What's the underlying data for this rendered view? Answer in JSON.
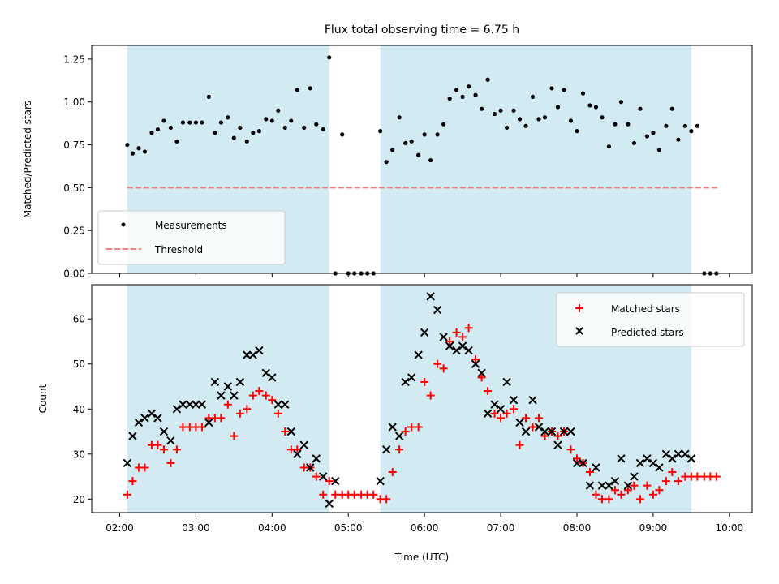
{
  "colors": {
    "observing_band": "#add8e6",
    "measurement": "#000000",
    "threshold": "#f08080",
    "matched": "#ff0000",
    "predicted": "#000000"
  },
  "chart_data": [
    {
      "type": "scatter",
      "title": "Flux total observing time = 6.75 h",
      "xlabel": "",
      "ylabel": "Matched/Predicted stars",
      "xlim": [
        1.633,
        10.3
      ],
      "ylim": [
        0,
        1.33
      ],
      "yticks": [
        0,
        0.25,
        0.5,
        0.75,
        1.0,
        1.25
      ],
      "ytick_labels": [
        "0.00",
        "0.25",
        "0.50",
        "0.75",
        "1.00",
        "1.25"
      ],
      "xticks": [
        2,
        3,
        4,
        5,
        6,
        7,
        8,
        9,
        10
      ],
      "xtick_labels": [
        "02:00",
        "03:00",
        "04:00",
        "05:00",
        "06:00",
        "07:00",
        "08:00",
        "09:00",
        "10:00"
      ],
      "grid": false,
      "legend": {
        "placement": "lower-left",
        "entries": [
          "Measurements",
          "Threshold"
        ]
      },
      "observing_windows": [
        [
          2.1,
          4.75
        ],
        [
          5.42,
          9.5
        ]
      ],
      "threshold": {
        "y": 0.5,
        "x_range": [
          2.1,
          9.85
        ]
      },
      "series": [
        {
          "name": "Measurements",
          "x": [
            2.1,
            2.17,
            2.25,
            2.33,
            2.42,
            2.5,
            2.58,
            2.67,
            2.75,
            2.83,
            2.92,
            3.0,
            3.08,
            3.17,
            3.25,
            3.33,
            3.42,
            3.5,
            3.58,
            3.67,
            3.75,
            3.83,
            3.92,
            4.0,
            4.08,
            4.17,
            4.25,
            4.33,
            4.42,
            4.5,
            4.58,
            4.67,
            4.75,
            4.83,
            4.92,
            5.0,
            5.08,
            5.17,
            5.25,
            5.33,
            5.42,
            5.5,
            5.58,
            5.67,
            5.75,
            5.83,
            5.92,
            6.0,
            6.08,
            6.17,
            6.25,
            6.33,
            6.42,
            6.5,
            6.58,
            6.67,
            6.75,
            6.83,
            6.92,
            7.0,
            7.08,
            7.17,
            7.25,
            7.33,
            7.42,
            7.5,
            7.58,
            7.67,
            7.75,
            7.83,
            7.92,
            8.0,
            8.08,
            8.17,
            8.25,
            8.33,
            8.42,
            8.5,
            8.58,
            8.67,
            8.75,
            8.83,
            8.92,
            9.0,
            9.08,
            9.17,
            9.25,
            9.33,
            9.42,
            9.5,
            9.58,
            9.67,
            9.75,
            9.83
          ],
          "y": [
            0.75,
            0.7,
            0.73,
            0.71,
            0.82,
            0.84,
            0.89,
            0.85,
            0.77,
            0.88,
            0.88,
            0.88,
            0.88,
            1.03,
            0.82,
            0.88,
            0.91,
            0.79,
            0.85,
            0.77,
            0.82,
            0.83,
            0.9,
            0.89,
            0.95,
            0.85,
            0.89,
            1.07,
            0.85,
            1.08,
            0.87,
            0.84,
            1.26,
            0.0,
            0.81,
            0.0,
            0.0,
            0.0,
            0.0,
            0.0,
            0.83,
            0.65,
            0.72,
            0.91,
            0.76,
            0.77,
            0.69,
            0.81,
            0.66,
            0.81,
            0.87,
            1.02,
            1.07,
            1.03,
            1.09,
            1.04,
            0.96,
            1.13,
            0.93,
            0.95,
            0.85,
            0.95,
            0.9,
            0.86,
            1.03,
            0.9,
            0.91,
            1.08,
            0.97,
            1.07,
            0.89,
            0.83,
            1.05,
            0.98,
            0.97,
            0.91,
            0.74,
            0.87,
            1.0,
            0.87,
            0.76,
            0.96,
            0.8,
            0.82,
            0.72,
            0.86,
            0.96,
            0.78,
            0.86,
            0.83,
            0.86,
            0.0,
            0.0,
            0.0
          ]
        }
      ]
    },
    {
      "type": "scatter",
      "title": "",
      "xlabel": "Time (UTC)",
      "ylabel": "Count",
      "xlim": [
        1.633,
        10.3
      ],
      "ylim": [
        17,
        67.6
      ],
      "yticks": [
        20,
        30,
        40,
        50,
        60
      ],
      "ytick_labels": [
        "20",
        "30",
        "40",
        "50",
        "60"
      ],
      "xticks": [
        2,
        3,
        4,
        5,
        6,
        7,
        8,
        9,
        10
      ],
      "xtick_labels": [
        "02:00",
        "03:00",
        "04:00",
        "05:00",
        "06:00",
        "07:00",
        "08:00",
        "09:00",
        "10:00"
      ],
      "grid": false,
      "legend": {
        "placement": "upper-right",
        "entries": [
          "Matched stars",
          "Predicted stars"
        ]
      },
      "observing_windows": [
        [
          2.1,
          4.75
        ],
        [
          5.42,
          9.5
        ]
      ],
      "series": [
        {
          "name": "Matched stars",
          "marker": "plus",
          "x": [
            2.1,
            2.17,
            2.25,
            2.33,
            2.42,
            2.5,
            2.58,
            2.67,
            2.75,
            2.83,
            2.92,
            3.0,
            3.08,
            3.17,
            3.25,
            3.33,
            3.42,
            3.5,
            3.58,
            3.67,
            3.75,
            3.83,
            3.92,
            4.0,
            4.08,
            4.17,
            4.25,
            4.33,
            4.42,
            4.5,
            4.58,
            4.67,
            4.75,
            4.83,
            4.92,
            5.0,
            5.08,
            5.17,
            5.25,
            5.33,
            5.42,
            5.5,
            5.58,
            5.67,
            5.75,
            5.83,
            5.92,
            6.0,
            6.08,
            6.17,
            6.25,
            6.33,
            6.42,
            6.5,
            6.58,
            6.67,
            6.75,
            6.83,
            6.92,
            7.0,
            7.08,
            7.17,
            7.25,
            7.33,
            7.42,
            7.5,
            7.58,
            7.67,
            7.75,
            7.83,
            7.92,
            8.0,
            8.08,
            8.17,
            8.25,
            8.33,
            8.42,
            8.5,
            8.58,
            8.67,
            8.75,
            8.83,
            8.92,
            9.0,
            9.08,
            9.17,
            9.25,
            9.33,
            9.42,
            9.5,
            9.58,
            9.67,
            9.75,
            9.83
          ],
          "y": [
            21,
            24,
            27,
            27,
            32,
            32,
            31,
            28,
            31,
            36,
            36,
            36,
            36,
            38,
            38,
            38,
            41,
            34,
            39,
            40,
            43,
            44,
            43,
            42,
            39,
            35,
            31,
            31,
            27,
            27,
            25,
            21,
            24,
            21,
            21,
            21,
            21,
            21,
            21,
            21,
            20,
            20,
            26,
            31,
            35,
            36,
            36,
            46,
            43,
            50,
            49,
            55,
            57,
            56,
            58,
            51,
            47,
            44,
            39,
            38,
            39,
            40,
            32,
            38,
            36,
            38,
            34,
            35,
            34,
            35,
            31,
            29,
            28,
            26,
            21,
            20,
            20,
            22,
            21,
            22,
            23,
            20,
            23,
            21,
            22,
            24,
            26,
            24,
            25,
            25,
            25,
            25,
            25,
            25
          ]
        },
        {
          "name": "Predicted stars",
          "marker": "x",
          "x": [
            2.1,
            2.17,
            2.25,
            2.33,
            2.42,
            2.5,
            2.58,
            2.67,
            2.75,
            2.83,
            2.92,
            3.0,
            3.08,
            3.17,
            3.25,
            3.33,
            3.42,
            3.5,
            3.58,
            3.67,
            3.75,
            3.83,
            3.92,
            4.0,
            4.08,
            4.17,
            4.25,
            4.33,
            4.42,
            4.5,
            4.58,
            4.67,
            4.75,
            4.83,
            5.42,
            5.5,
            5.58,
            5.67,
            5.75,
            5.83,
            5.92,
            6.0,
            6.08,
            6.17,
            6.25,
            6.33,
            6.42,
            6.5,
            6.58,
            6.67,
            6.75,
            6.83,
            6.92,
            7.0,
            7.08,
            7.17,
            7.25,
            7.33,
            7.42,
            7.5,
            7.58,
            7.67,
            7.75,
            7.83,
            7.92,
            8.0,
            8.08,
            8.17,
            8.25,
            8.33,
            8.42,
            8.5,
            8.58,
            8.67,
            8.75,
            8.83,
            8.92,
            9.0,
            9.08,
            9.17,
            9.25,
            9.33,
            9.42,
            9.5
          ],
          "y": [
            28,
            34,
            37,
            38,
            39,
            38,
            35,
            33,
            40,
            41,
            41,
            41,
            41,
            37,
            46,
            43,
            45,
            43,
            46,
            52,
            52,
            53,
            48,
            47,
            41,
            41,
            35,
            30,
            32,
            27,
            29,
            25,
            19,
            24,
            24,
            31,
            36,
            34,
            46,
            47,
            52,
            57,
            65,
            62,
            56,
            54,
            53,
            54,
            53,
            50,
            48,
            39,
            41,
            40,
            46,
            42,
            37,
            35,
            42,
            36,
            35,
            35,
            32,
            35,
            35,
            28,
            28,
            23,
            27,
            23,
            23,
            24,
            29,
            23,
            25,
            28,
            29,
            28,
            27,
            30,
            29,
            30,
            30,
            29
          ]
        }
      ]
    }
  ]
}
